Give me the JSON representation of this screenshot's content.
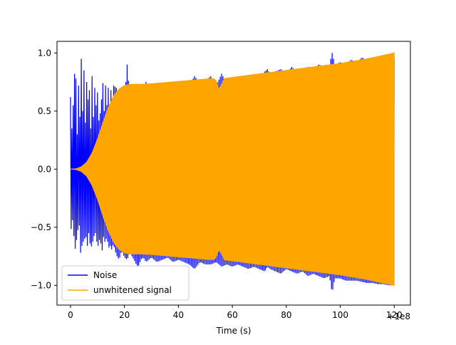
{
  "chart_data": {
    "type": "line",
    "title": "",
    "xlabel": "Time (s)",
    "ylabel": "",
    "x_offset_label": "+1e8",
    "xlim": [
      -5,
      126
    ],
    "ylim": [
      -1.17,
      1.1
    ],
    "x_ticks": [
      0,
      20,
      40,
      60,
      80,
      100,
      120
    ],
    "x_tick_labels": [
      "0",
      "20",
      "40",
      "60",
      "80",
      "100",
      "120"
    ],
    "y_ticks": [
      1.0,
      0.5,
      0.0,
      -0.5,
      -1.0
    ],
    "y_tick_labels": [
      "1.0",
      "0.5",
      "0.0",
      "−0.5",
      "−1.0"
    ],
    "grid": false,
    "legend_position": "lower-left",
    "series": [
      {
        "name": "Noise",
        "color": "#0000ff",
        "x": [
          0,
          0.5,
          1,
          1.5,
          2,
          2.5,
          3,
          3.5,
          4,
          4.5,
          5,
          5.5,
          6,
          6.5,
          7,
          7.5,
          8,
          8.5,
          9,
          9.5,
          10,
          10.5,
          11,
          11.5,
          12,
          12.5,
          13,
          13.5,
          14,
          14.5,
          15,
          15.5,
          16,
          17,
          18,
          19,
          20,
          21,
          22,
          23,
          24,
          25,
          26,
          27,
          28,
          29,
          30,
          32,
          34,
          36,
          38,
          40,
          42,
          44,
          46,
          48,
          50,
          52,
          54,
          56,
          58,
          60,
          62,
          64,
          66,
          68,
          70,
          72,
          73,
          74,
          76,
          78,
          80,
          82,
          84,
          86,
          88,
          90,
          92,
          94,
          96,
          97,
          98,
          100,
          102,
          104,
          106,
          108,
          110,
          112,
          114,
          116,
          118,
          120
        ],
        "upper": [
          0.62,
          0.35,
          0.55,
          0.82,
          0.78,
          0.3,
          0.72,
          0.45,
          0.95,
          0.5,
          0.85,
          0.4,
          0.75,
          0.6,
          0.68,
          0.35,
          0.8,
          0.45,
          0.7,
          0.55,
          0.66,
          0.42,
          0.48,
          0.6,
          0.74,
          0.5,
          0.72,
          0.55,
          0.7,
          0.5,
          0.68,
          0.6,
          0.72,
          0.7,
          0.6,
          0.55,
          0.6,
          0.9,
          0.62,
          0.55,
          0.6,
          0.55,
          0.58,
          0.55,
          0.75,
          0.62,
          0.72,
          0.66,
          0.7,
          0.68,
          0.72,
          0.7,
          0.74,
          0.72,
          0.8,
          0.74,
          0.76,
          0.8,
          0.72,
          0.82,
          0.74,
          0.72,
          0.78,
          0.76,
          0.8,
          0.78,
          0.76,
          0.84,
          0.86,
          0.82,
          0.84,
          0.86,
          0.82,
          0.88,
          0.84,
          0.86,
          0.88,
          0.86,
          0.9,
          0.88,
          0.9,
          1.0,
          0.9,
          0.92,
          0.9,
          0.94,
          0.92,
          0.96,
          0.94,
          0.95,
          0.96,
          0.97,
          0.98,
          0.96
        ],
        "lower": [
          -0.45,
          -0.58,
          -0.3,
          -0.85,
          -0.52,
          -0.7,
          -0.35,
          -0.62,
          -0.82,
          -0.5,
          -0.75,
          -0.45,
          -0.72,
          -0.6,
          -0.5,
          -0.78,
          -0.55,
          -0.7,
          -0.45,
          -0.65,
          -0.6,
          -0.72,
          -0.5,
          -0.78,
          -0.62,
          -0.55,
          -0.7,
          -0.5,
          -0.75,
          -0.6,
          -0.72,
          -0.66,
          -0.65,
          -0.74,
          -0.78,
          -0.7,
          -0.76,
          -0.78,
          -0.72,
          -0.76,
          -0.8,
          -0.86,
          -0.78,
          -0.76,
          -0.8,
          -0.78,
          -0.76,
          -0.8,
          -0.78,
          -0.76,
          -0.8,
          -0.78,
          -0.8,
          -0.82,
          -0.86,
          -0.8,
          -0.82,
          -0.82,
          -0.8,
          -0.84,
          -0.82,
          -0.84,
          -0.82,
          -0.84,
          -0.86,
          -0.84,
          -0.86,
          -0.88,
          -0.84,
          -0.86,
          -0.88,
          -0.9,
          -0.86,
          -0.88,
          -0.9,
          -0.88,
          -0.92,
          -0.9,
          -0.92,
          -0.94,
          -0.92,
          -1.07,
          -0.94,
          -0.94,
          -0.96,
          -0.96,
          -0.96,
          -0.97,
          -0.98,
          -0.98,
          -0.99,
          -0.99,
          -1.0,
          -1.0
        ]
      },
      {
        "name": "unwhitened signal",
        "color": "#ffa500",
        "x": [
          0,
          2,
          4,
          6,
          8,
          10,
          12,
          14,
          16,
          18,
          20,
          22,
          24,
          26,
          30,
          35,
          40,
          45,
          50,
          53,
          54,
          55,
          56,
          57,
          60,
          70,
          80,
          90,
          100,
          110,
          118,
          120
        ],
        "amplitude": [
          0.0,
          0.003,
          0.02,
          0.06,
          0.14,
          0.26,
          0.4,
          0.53,
          0.63,
          0.69,
          0.72,
          0.73,
          0.73,
          0.73,
          0.735,
          0.745,
          0.755,
          0.765,
          0.775,
          0.78,
          0.76,
          0.69,
          0.73,
          0.78,
          0.79,
          0.82,
          0.85,
          0.88,
          0.91,
          0.95,
          0.99,
          1.0
        ]
      }
    ]
  }
}
